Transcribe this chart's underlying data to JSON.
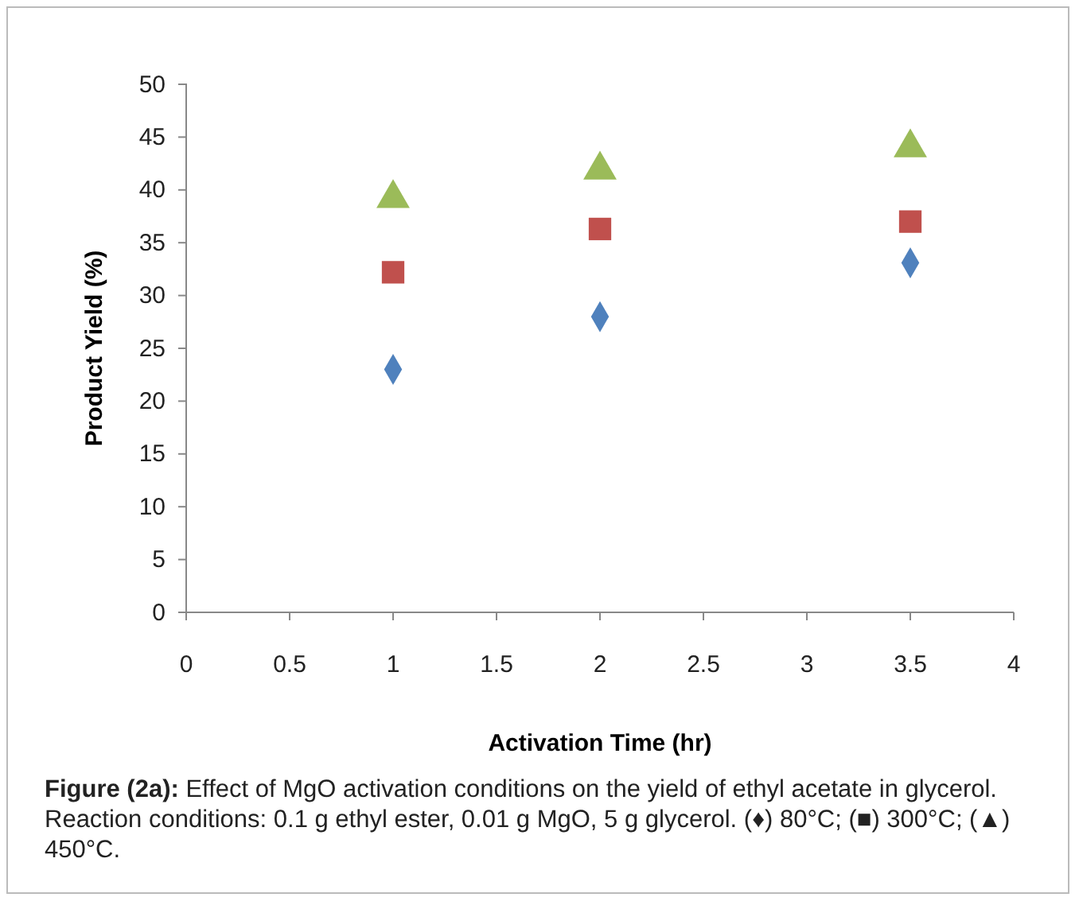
{
  "chart_data": {
    "type": "scatter",
    "xlabel": "Activation Time (hr)",
    "ylabel": "Product Yield (%)",
    "xlim": [
      0,
      4
    ],
    "xticks": [
      0,
      0.5,
      1,
      1.5,
      2,
      2.5,
      3,
      3.5,
      4
    ],
    "ylim": [
      0,
      50
    ],
    "yticks": [
      0,
      5,
      10,
      15,
      20,
      25,
      30,
      35,
      40,
      45,
      50
    ],
    "x": [
      1,
      2,
      3.5
    ],
    "grid": false,
    "series": [
      {
        "color": "#4f81bd",
        "marker": "diamond",
        "values": [
          23.0,
          28.0,
          33.1
        ]
      },
      {
        "color": "#c0504d",
        "marker": "square",
        "values": [
          32.2,
          36.3,
          37.0
        ]
      },
      {
        "color": "#9bbb59",
        "marker": "triangle",
        "values": [
          39.2,
          41.9,
          44.0
        ]
      }
    ],
    "annotations": [
      "Figure (2a):",
      "Effect of MgO activation conditions on the yield of ethyl acetate in glycerol. Reaction conditions: 0.1 g ethyl ester, 0.01 g MgO, 5 g glycerol. (♦) 80°C; (■) 300°C; (▲) 450°C."
    ]
  }
}
